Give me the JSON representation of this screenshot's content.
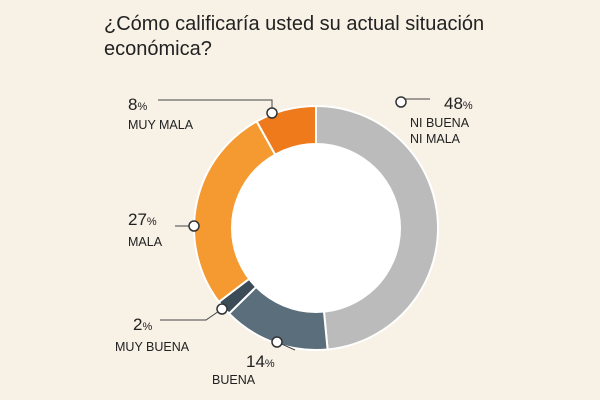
{
  "chart_data": {
    "type": "pie",
    "style": "donut",
    "title_lines": [
      "¿Cómo calificaría usted su actual situación",
      "económica?"
    ],
    "unit": "%",
    "slices": [
      {
        "label_lines": [
          "NI BUENA",
          "NI MALA"
        ],
        "value": 48,
        "color": "#bbbbbb"
      },
      {
        "label_lines": [
          "BUENA"
        ],
        "value": 14,
        "color": "#5b6e7b"
      },
      {
        "label_lines": [
          "MUY BUENA"
        ],
        "value": 2,
        "color": "#3b4c58"
      },
      {
        "label_lines": [
          "MALA"
        ],
        "value": 27,
        "color": "#f59a30"
      },
      {
        "label_lines": [
          "MUY MALA"
        ],
        "value": 8,
        "color": "#ef7a1c"
      }
    ],
    "start_angle_deg": 0,
    "direction": "clockwise"
  }
}
